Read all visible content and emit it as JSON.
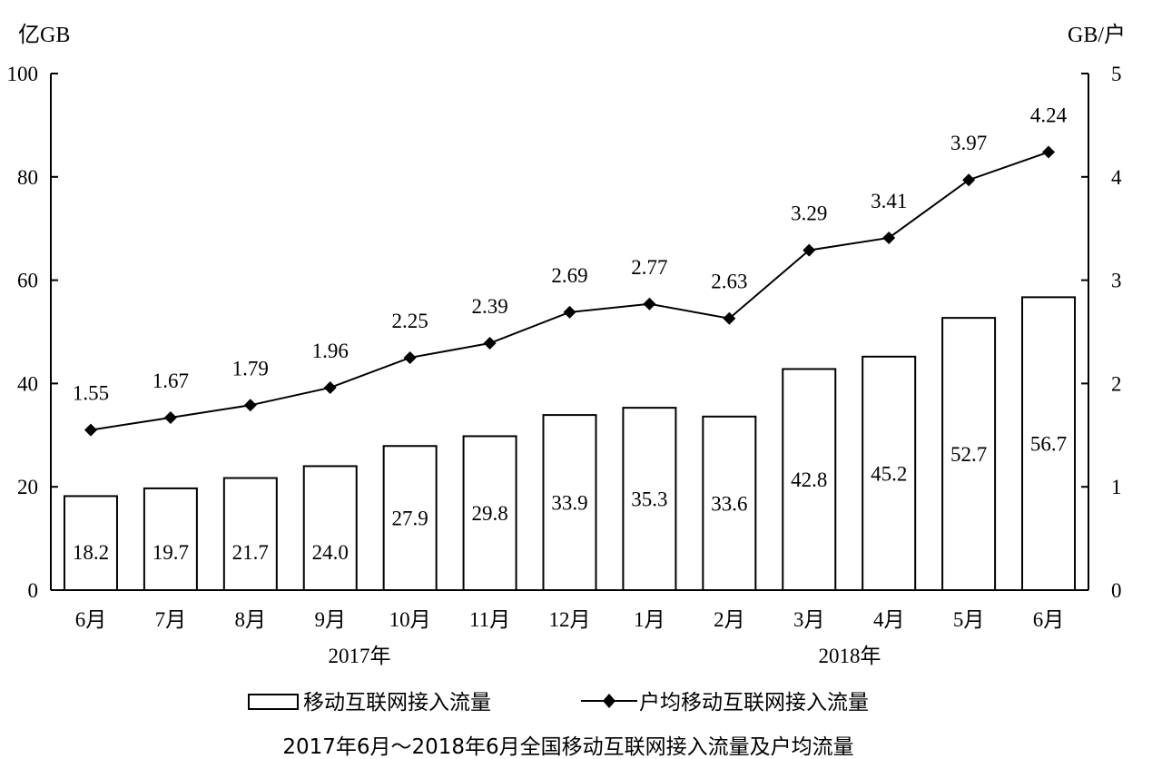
{
  "chart_data": {
    "type": "bar",
    "title": "2017年6月～2018年6月全国移动互联网接入流量及户均流量",
    "left_axis_unit": "亿GB",
    "right_axis_unit": "GB/户",
    "left_ylim": [
      0,
      100
    ],
    "left_ticks": [
      "0",
      "20",
      "40",
      "60",
      "80",
      "100"
    ],
    "right_ylim": [
      0,
      5
    ],
    "right_ticks": [
      "0",
      "1",
      "2",
      "3",
      "4",
      "5"
    ],
    "categories": [
      "6月",
      "7月",
      "8月",
      "9月",
      "10月",
      "11月",
      "12月",
      "1月",
      "2月",
      "3月",
      "4月",
      "5月",
      "6月"
    ],
    "year_labels": [
      "2017年",
      "2018年"
    ],
    "series": [
      {
        "name": "移动互联网接入流量",
        "kind": "bar",
        "axis": "left",
        "values": [
          18.2,
          19.7,
          21.7,
          24.0,
          27.9,
          29.8,
          33.9,
          35.3,
          33.6,
          42.8,
          45.2,
          52.7,
          56.7
        ],
        "labels": [
          "18.2",
          "19.7",
          "21.7",
          "24.0",
          "27.9",
          "29.8",
          "33.9",
          "35.3",
          "33.6",
          "42.8",
          "45.2",
          "52.7",
          "56.7"
        ]
      },
      {
        "name": "户均移动互联网接入流量",
        "kind": "line",
        "axis": "right",
        "marker": "diamond",
        "values": [
          1.55,
          1.67,
          1.79,
          1.96,
          2.25,
          2.39,
          2.69,
          2.77,
          2.63,
          3.29,
          3.41,
          3.97,
          4.24
        ],
        "labels": [
          "1.55",
          "1.67",
          "1.79",
          "1.96",
          "2.25",
          "2.39",
          "2.69",
          "2.77",
          "2.63",
          "3.29",
          "3.41",
          "3.97",
          "4.24"
        ]
      }
    ],
    "legend_position": "bottom",
    "grid": false
  }
}
